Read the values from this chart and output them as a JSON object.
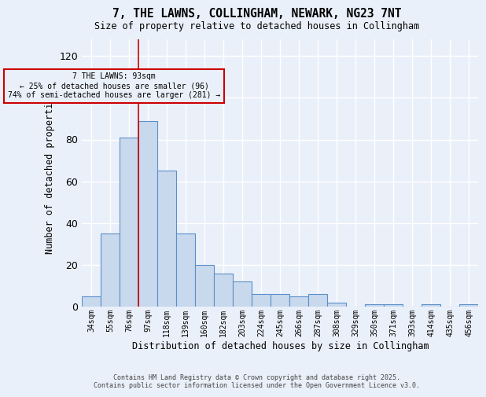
{
  "title_line1": "7, THE LAWNS, COLLINGHAM, NEWARK, NG23 7NT",
  "title_line2": "Size of property relative to detached houses in Collingham",
  "xlabel": "Distribution of detached houses by size in Collingham",
  "ylabel": "Number of detached properties",
  "bar_color": "#c9d9ed",
  "bar_edge_color": "#5b8fc9",
  "bins": [
    "34sqm",
    "55sqm",
    "76sqm",
    "97sqm",
    "118sqm",
    "139sqm",
    "160sqm",
    "182sqm",
    "203sqm",
    "224sqm",
    "245sqm",
    "266sqm",
    "287sqm",
    "308sqm",
    "329sqm",
    "350sqm",
    "371sqm",
    "393sqm",
    "414sqm",
    "435sqm",
    "456sqm"
  ],
  "values": [
    5,
    35,
    81,
    89,
    65,
    35,
    20,
    16,
    12,
    6,
    6,
    5,
    6,
    2,
    0,
    1,
    1,
    0,
    1,
    0,
    1
  ],
  "vline_x_index": 2.5,
  "vline_color": "#cc0000",
  "annotation_text": "7 THE LAWNS: 93sqm\n← 25% of detached houses are smaller (96)\n74% of semi-detached houses are larger (281) →",
  "ylim": [
    0,
    128
  ],
  "yticks": [
    0,
    20,
    40,
    60,
    80,
    100,
    120
  ],
  "background_color": "#eaf0f9",
  "grid_color": "#ffffff",
  "footer_line1": "Contains HM Land Registry data © Crown copyright and database right 2025.",
  "footer_line2": "Contains public sector information licensed under the Open Government Licence v3.0."
}
